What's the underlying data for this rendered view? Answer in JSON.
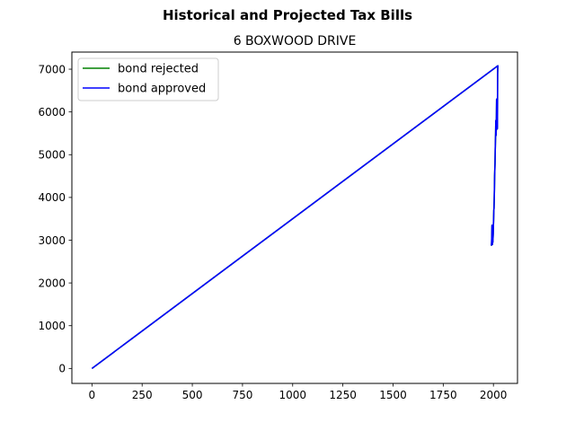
{
  "chart_data": {
    "type": "line",
    "suptitle": "Historical and Projected Tax Bills",
    "title": "6 BOXWOOD DRIVE",
    "xlabel": "",
    "ylabel": "",
    "xlim": [
      -100,
      2120
    ],
    "ylim": [
      -350,
      7400
    ],
    "xticks": [
      0,
      250,
      500,
      750,
      1000,
      1250,
      1500,
      1750,
      2000
    ],
    "yticks": [
      0,
      1000,
      2000,
      3000,
      4000,
      5000,
      6000,
      7000
    ],
    "grid": false,
    "legend_position": "top-left",
    "series": [
      {
        "name": "bond rejected",
        "color": "#008000",
        "x": [
          0,
          2022,
          2021,
          2020,
          2019,
          2018,
          2017,
          2016,
          2015,
          2014,
          2013,
          2012,
          2011,
          2010,
          2009,
          2008,
          2007,
          2006,
          2005,
          2004,
          2003,
          2002,
          2001,
          2000,
          1999,
          1998,
          1997,
          1996,
          1995,
          1994,
          1993,
          1992,
          1991,
          1990
        ],
        "y": [
          0,
          7080,
          6900,
          5650,
          5600,
          6050,
          5750,
          6300,
          5900,
          5600,
          5450,
          5800,
          5500,
          5300,
          5100,
          4800,
          4650,
          4500,
          4200,
          3950,
          3750,
          3700,
          3500,
          3350,
          3150,
          3050,
          2950,
          3050,
          2900,
          2950,
          3350,
          3100,
          2950,
          2870
        ]
      },
      {
        "name": "bond approved",
        "color": "#0000ff",
        "x": [
          0,
          2022,
          2021,
          2020,
          2019,
          2018,
          2017,
          2016,
          2015,
          2014,
          2013,
          2012,
          2011,
          2010,
          2009,
          2008,
          2007,
          2006,
          2005,
          2004,
          2003,
          2002,
          2001,
          2000,
          1999,
          1998,
          1997,
          1996,
          1995,
          1994,
          1993,
          1992,
          1991,
          1990
        ],
        "y": [
          0,
          7080,
          6900,
          5650,
          5600,
          6050,
          5750,
          6300,
          5900,
          5600,
          5450,
          5800,
          5500,
          5300,
          5100,
          4800,
          4650,
          4500,
          4200,
          3950,
          3750,
          3700,
          3500,
          3350,
          3150,
          3050,
          2950,
          3050,
          2900,
          2950,
          3350,
          3100,
          2950,
          2870
        ]
      }
    ]
  }
}
